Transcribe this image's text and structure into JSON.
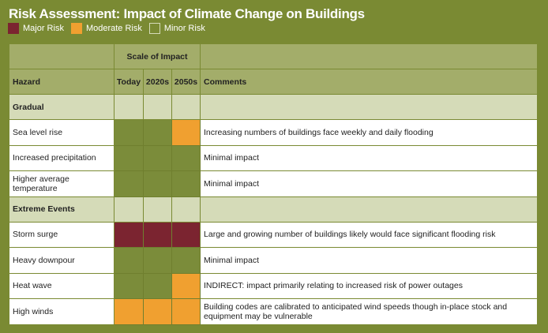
{
  "title": "Risk Assessment: Impact of Climate Change on Buildings",
  "legend": [
    {
      "label": "Major Risk",
      "color": "#7b2430"
    },
    {
      "label": "Moderate Risk",
      "color": "#f0a030"
    },
    {
      "label": "Minor Risk",
      "color": "#7a8a33"
    }
  ],
  "colors": {
    "major": "#7b2430",
    "moderate": "#f0a030",
    "minor": "#7b8c3a"
  },
  "table": {
    "scale_header": "Scale of Impact",
    "columns": [
      "Hazard",
      "Today",
      "2020s",
      "2050s",
      "Comments"
    ],
    "sections": [
      {
        "name": "Gradual",
        "rows": [
          {
            "hazard": "Sea level rise",
            "risk": [
              "minor",
              "minor",
              "moderate"
            ],
            "comment": "Increasing numbers of buildings face weekly and daily flooding"
          },
          {
            "hazard": "Increased precipitation",
            "risk": [
              "minor",
              "minor",
              "minor"
            ],
            "comment": "Minimal impact"
          },
          {
            "hazard": "Higher average temperature",
            "risk": [
              "minor",
              "minor",
              "minor"
            ],
            "comment": "Minimal impact"
          }
        ]
      },
      {
        "name": "Extreme Events",
        "rows": [
          {
            "hazard": "Storm surge",
            "risk": [
              "major",
              "major",
              "major"
            ],
            "comment": "Large and growing number of buildings likely would face significant flooding risk"
          },
          {
            "hazard": "Heavy downpour",
            "risk": [
              "minor",
              "minor",
              "minor"
            ],
            "comment": "Minimal impact"
          },
          {
            "hazard": "Heat wave",
            "risk": [
              "minor",
              "minor",
              "moderate"
            ],
            "comment": "INDIRECT: impact primarily relating to increased risk of power outages"
          },
          {
            "hazard": "High winds",
            "risk": [
              "moderate",
              "moderate",
              "moderate"
            ],
            "comment": "Building codes are calibrated to anticipated wind speeds though in-place stock and equipment may be vulnerable"
          }
        ]
      }
    ]
  }
}
